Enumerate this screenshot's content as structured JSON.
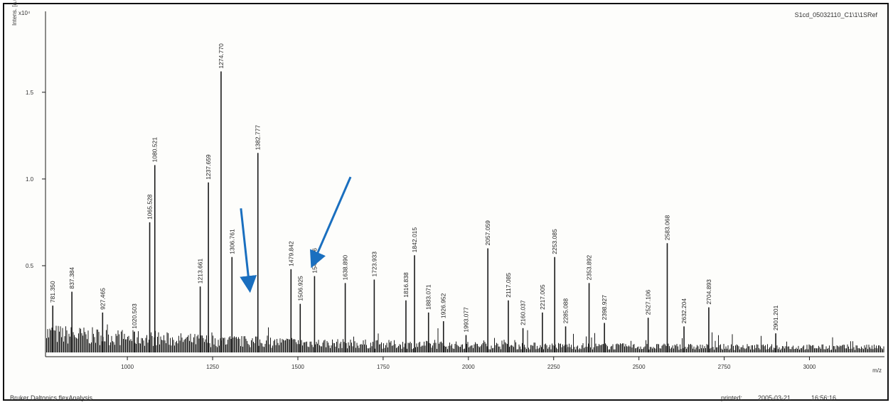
{
  "header": {
    "scale": "x10⁴",
    "y_axis_label": "Intens. [a.u.]",
    "file": "S1cd_05032110_C1\\1\\1SRef"
  },
  "footer": {
    "software": "Bruker Daltonics flexAnalysis",
    "printed_label": "printed:",
    "printed_date": "2005-03-21",
    "printed_time": "16:56:16"
  },
  "colors": {
    "trace": "#1a1a1a",
    "arrow": "#1a6fbf"
  },
  "chart_data": {
    "type": "line",
    "xlabel": "m/z",
    "ylabel": "Intens. [a.u.]",
    "xlim": [
      760,
      3220
    ],
    "ylim": [
      0,
      1.95
    ],
    "xticks": [
      1000,
      1250,
      1500,
      1750,
      2000,
      2250,
      2500,
      2750,
      3000
    ],
    "yticks": [
      0.5,
      1.0,
      1.5
    ],
    "ytick_labels": [
      "0.5",
      "1.0",
      "1.5"
    ],
    "peaks": [
      {
        "mz": 781.35,
        "label": "781.350",
        "intensity": 0.27
      },
      {
        "mz": 837.384,
        "label": "837.384",
        "intensity": 0.35
      },
      {
        "mz": 927.465,
        "label": "927.465",
        "intensity": 0.23
      },
      {
        "mz": 1020.503,
        "label": "1020.503",
        "intensity": 0.12
      },
      {
        "mz": 1065.528,
        "label": "1065.528",
        "intensity": 0.75
      },
      {
        "mz": 1080.521,
        "label": "1080.521",
        "intensity": 1.08
      },
      {
        "mz": 1213.661,
        "label": "1213.661",
        "intensity": 0.38
      },
      {
        "mz": 1237.659,
        "label": "1237.659",
        "intensity": 0.98
      },
      {
        "mz": 1274.77,
        "label": "1274.770",
        "intensity": 1.62
      },
      {
        "mz": 1306.761,
        "label": "1306.761",
        "intensity": 0.55
      },
      {
        "mz": 1382.777,
        "label": "1382.777",
        "intensity": 1.15
      },
      {
        "mz": 1479.842,
        "label": "1479.842",
        "intensity": 0.48
      },
      {
        "mz": 1506.925,
        "label": "1506.925",
        "intensity": 0.28
      },
      {
        "mz": 1548.856,
        "label": "1548.856",
        "intensity": 0.44
      },
      {
        "mz": 1638.89,
        "label": "1638.890",
        "intensity": 0.4
      },
      {
        "mz": 1723.933,
        "label": "1723.933",
        "intensity": 0.42
      },
      {
        "mz": 1816.838,
        "label": "1816.838",
        "intensity": 0.3
      },
      {
        "mz": 1842.015,
        "label": "1842.015",
        "intensity": 0.56
      },
      {
        "mz": 1883.071,
        "label": "1883.071",
        "intensity": 0.23
      },
      {
        "mz": 1926.952,
        "label": "1926.952",
        "intensity": 0.18
      },
      {
        "mz": 1993.077,
        "label": "1993.077",
        "intensity": 0.1
      },
      {
        "mz": 2057.059,
        "label": "2057.059",
        "intensity": 0.6
      },
      {
        "mz": 2117.085,
        "label": "2117.085",
        "intensity": 0.3
      },
      {
        "mz": 2160.037,
        "label": "2160.037",
        "intensity": 0.14
      },
      {
        "mz": 2217.005,
        "label": "2217.005",
        "intensity": 0.23
      },
      {
        "mz": 2253.085,
        "label": "2253.085",
        "intensity": 0.55
      },
      {
        "mz": 2285.088,
        "label": "2285.088",
        "intensity": 0.15
      },
      {
        "mz": 2353.892,
        "label": "2353.892",
        "intensity": 0.4
      },
      {
        "mz": 2398.927,
        "label": "2398.927",
        "intensity": 0.17
      },
      {
        "mz": 2527.106,
        "label": "2527.106",
        "intensity": 0.2
      },
      {
        "mz": 2583.068,
        "label": "2583.068",
        "intensity": 0.63
      },
      {
        "mz": 2632.204,
        "label": "2632.204",
        "intensity": 0.15
      },
      {
        "mz": 2704.893,
        "label": "2704.893",
        "intensity": 0.26
      },
      {
        "mz": 2901.201,
        "label": "2901.201",
        "intensity": 0.11
      }
    ],
    "arrows": [
      {
        "target": "1382.777",
        "target_mz": 1358,
        "target_intensity": 0.38
      },
      {
        "target": "1548.856",
        "target_mz": 1546,
        "target_intensity": 0.52
      }
    ]
  }
}
